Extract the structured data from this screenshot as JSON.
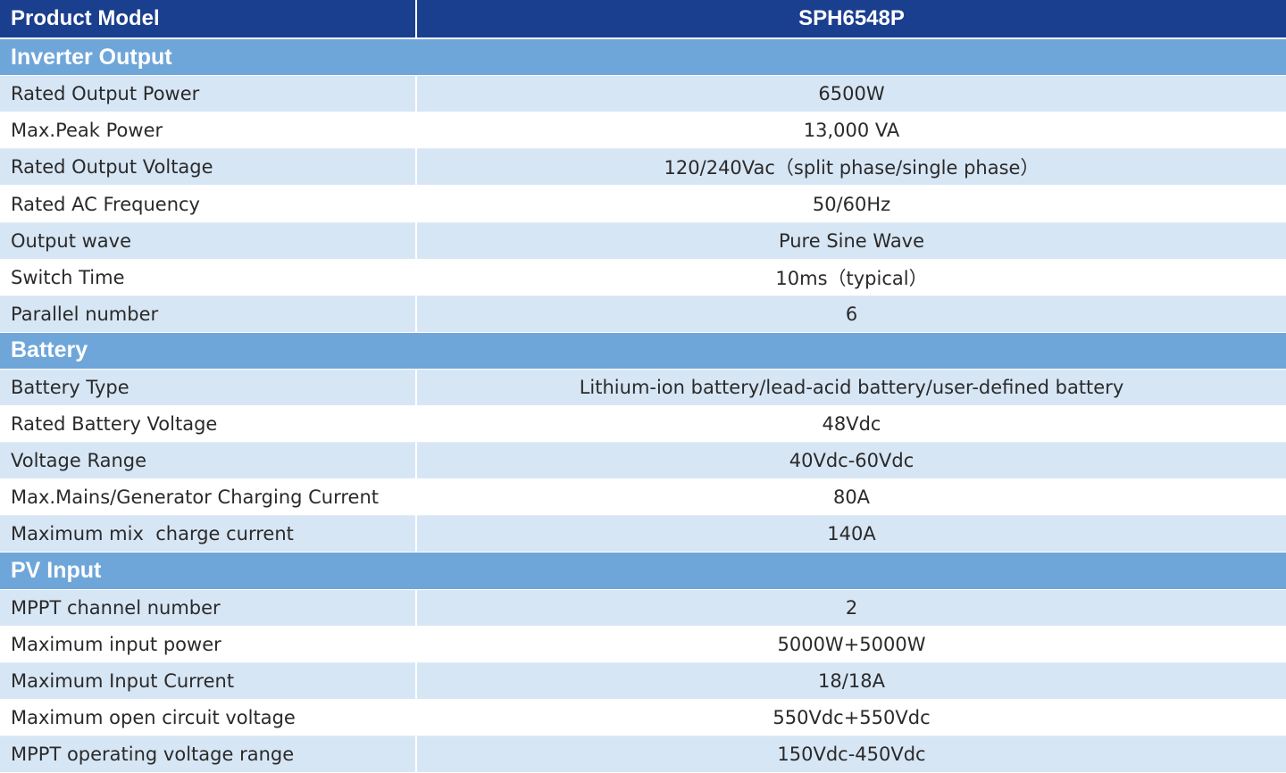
{
  "header": {
    "label": "Product Model",
    "model": "SPH6548P"
  },
  "sections": [
    {
      "title": "Inverter Output",
      "rows": [
        [
          "Rated Output Power",
          "6500W"
        ],
        [
          "Max.Peak Power",
          "13,000 VA"
        ],
        [
          "Rated Output Voltage",
          "120/240Vac（split phase/single phase）"
        ],
        [
          "Rated AC Frequency",
          "50/60Hz"
        ],
        [
          "Output wave",
          "Pure Sine Wave"
        ],
        [
          "Switch Time",
          "10ms（typical）"
        ],
        [
          "Parallel number",
          "6"
        ]
      ]
    },
    {
      "title": "Battery",
      "rows": [
        [
          "Battery Type",
          "Lithium-ion battery/lead-acid battery/user-defined battery"
        ],
        [
          "Rated Battery Voltage",
          "48Vdc"
        ],
        [
          "Voltage Range",
          "40Vdc-60Vdc"
        ],
        [
          "Max.Mains/Generator Charging Current",
          "80A"
        ],
        [
          "Maximum mix  charge current",
          "140A"
        ]
      ]
    },
    {
      "title": "PV Input",
      "rows": [
        [
          "MPPT channel number",
          "2"
        ],
        [
          "Maximum input power",
          "5000W+5000W"
        ],
        [
          "Maximum Input Current",
          "18/18A"
        ],
        [
          "Maximum open circuit voltage",
          "550Vdc+550Vdc"
        ],
        [
          "MPPT operating voltage range",
          "150Vdc-450Vdc"
        ]
      ]
    }
  ]
}
